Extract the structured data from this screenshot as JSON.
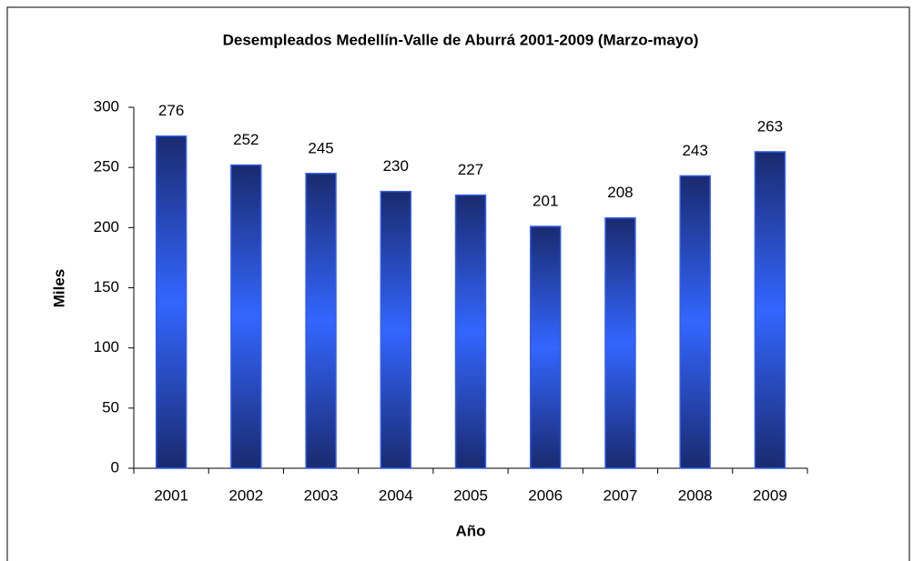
{
  "chart_data": {
    "type": "bar",
    "title": "Desempleados Medellín-Valle de Aburrá 2001-2009 (Marzo-mayo)",
    "x_label": "Año",
    "y_label": "Miles",
    "categories": [
      "2001",
      "2002",
      "2003",
      "2004",
      "2005",
      "2006",
      "2007",
      "2008",
      "2009"
    ],
    "values": [
      276,
      252,
      245,
      230,
      227,
      201,
      208,
      243,
      263
    ],
    "color": "#2f5cf0",
    "ylim": [
      0,
      300
    ],
    "yticks": [
      0,
      50,
      100,
      150,
      200,
      250,
      300
    ],
    "grid": false
  }
}
